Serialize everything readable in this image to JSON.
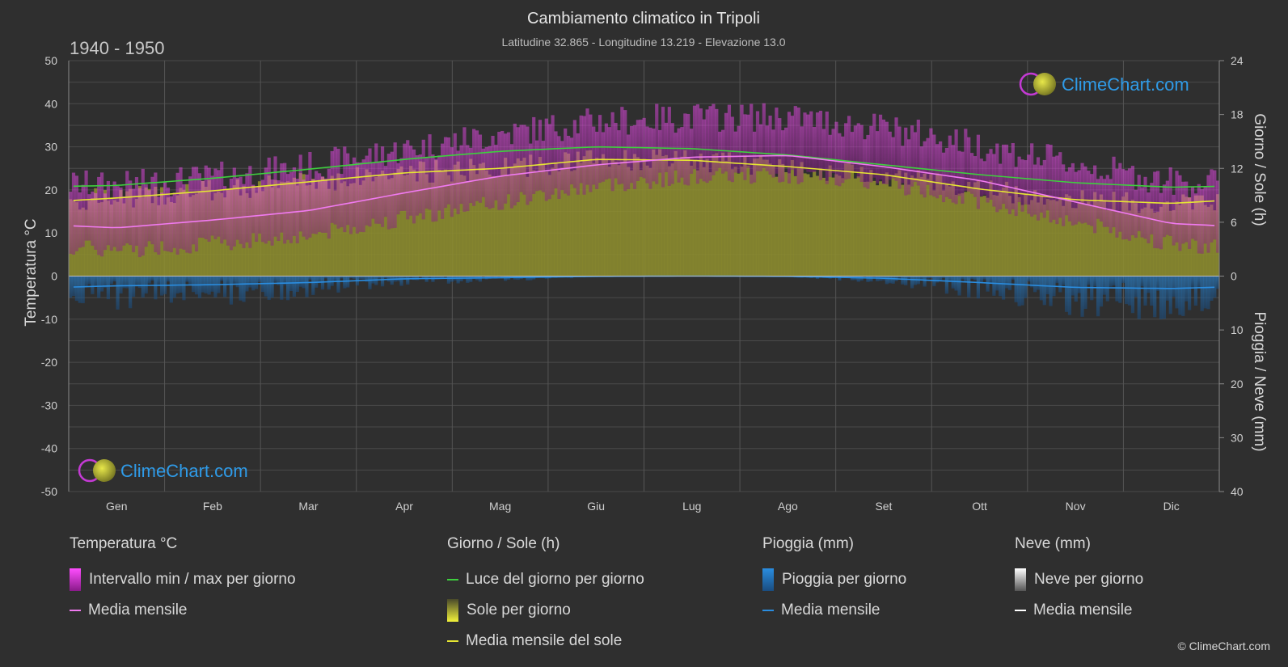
{
  "title": "Cambiamento climatico in Tripoli",
  "subtitle": "Latitudine 32.865 - Longitudine 13.219 - Elevazione 13.0",
  "period": "1940 - 1950",
  "logo_text": "ClimeChart.com",
  "copyright": "© ClimeChart.com",
  "axes": {
    "left_label": "Temperatura °C",
    "right_top_label": "Giorno / Sole (h)",
    "right_bottom_label": "Pioggia / Neve (mm)",
    "left_ticks": [
      "50",
      "40",
      "30",
      "20",
      "10",
      "0",
      "-10",
      "-20",
      "-30",
      "-40",
      "-50"
    ],
    "right_top_ticks": [
      "24",
      "18",
      "12",
      "6",
      "0"
    ],
    "right_bottom_ticks": [
      "10",
      "20",
      "30",
      "40"
    ]
  },
  "colors": {
    "background": "#2f2f2f",
    "daylight": "#3ecf3e",
    "sunshine": "#e6e633",
    "sunshine_fill": "#8f8f2e",
    "temp_range": "#d42ad4",
    "temp_mean": "#f07af0",
    "rain": "#2a8de0",
    "snow": "#ffffff",
    "logo_text": "#2f9be8"
  },
  "chart_data": {
    "type": "area",
    "categories": [
      "Gen",
      "Feb",
      "Mar",
      "Apr",
      "Mag",
      "Giu",
      "Lug",
      "Ago",
      "Set",
      "Ott",
      "Nov",
      "Dic"
    ],
    "ylim_temperature": [
      -50,
      50
    ],
    "ylim_hours": [
      0,
      24
    ],
    "ylim_precip_mm": [
      0,
      40
    ],
    "grid": true,
    "series": [
      {
        "name": "Luce del giorno per giorno",
        "unit": "h",
        "values": [
          10.1,
          10.9,
          11.9,
          13.0,
          13.9,
          14.4,
          14.2,
          13.5,
          12.4,
          11.3,
          10.4,
          9.9
        ]
      },
      {
        "name": "Media mensile del sole",
        "unit": "h",
        "values": [
          8.7,
          9.5,
          10.5,
          11.5,
          12.0,
          13.0,
          12.9,
          12.2,
          11.3,
          9.7,
          8.5,
          8.1
        ]
      },
      {
        "name": "Media mensile",
        "unit": "°C",
        "values": [
          11.2,
          13.0,
          15.2,
          19.3,
          23.2,
          25.8,
          27.6,
          28.0,
          25.4,
          22.2,
          17.2,
          12.2
        ]
      },
      {
        "name": "Intervallo min / max per giorno",
        "unit": "°C",
        "min": [
          6.0,
          7.5,
          9.5,
          13.5,
          17.0,
          21.0,
          23.0,
          23.5,
          21.5,
          17.5,
          12.5,
          7.5
        ],
        "max": [
          19.5,
          21.5,
          24.0,
          28.0,
          31.5,
          34.5,
          35.5,
          35.5,
          33.0,
          29.0,
          24.5,
          20.5
        ]
      },
      {
        "name": "Pioggia - Media mensile",
        "unit": "mm",
        "values": [
          1.8,
          1.6,
          1.2,
          0.5,
          0.3,
          0.05,
          0.0,
          0.05,
          0.4,
          1.2,
          2.1,
          2.3
        ]
      },
      {
        "name": "Neve - Media mensile",
        "unit": "mm",
        "values": [
          0,
          0,
          0,
          0,
          0,
          0,
          0,
          0,
          0,
          0,
          0,
          0
        ]
      }
    ]
  },
  "legend": {
    "temperature": {
      "header": "Temperatura °C",
      "items": [
        "Intervallo min / max per giorno",
        "Media mensile"
      ]
    },
    "sun": {
      "header": "Giorno / Sole (h)",
      "items": [
        "Luce del giorno per giorno",
        "Sole per giorno",
        "Media mensile del sole"
      ]
    },
    "rain": {
      "header": "Pioggia (mm)",
      "items": [
        "Pioggia per giorno",
        "Media mensile"
      ]
    },
    "snow": {
      "header": "Neve (mm)",
      "items": [
        "Neve per giorno",
        "Media mensile"
      ]
    }
  }
}
